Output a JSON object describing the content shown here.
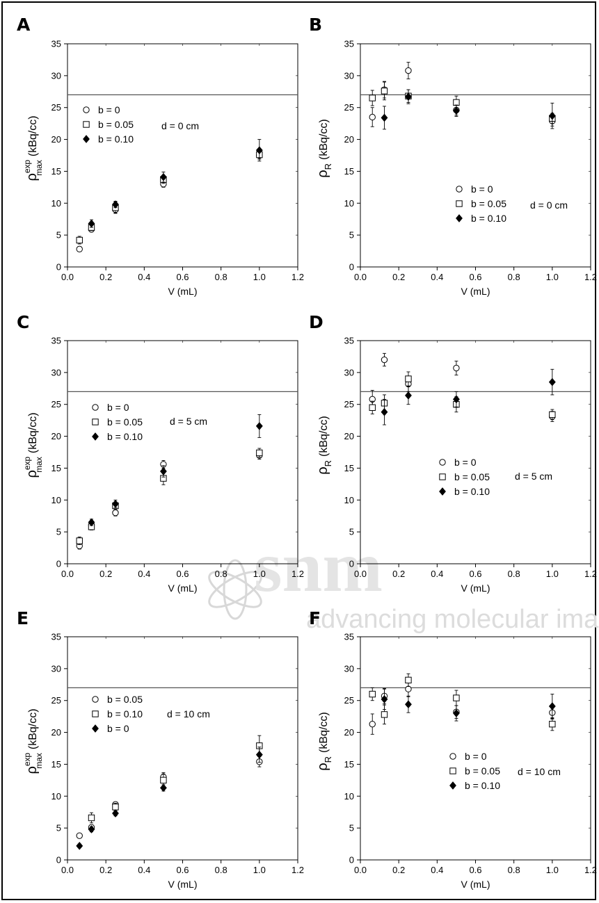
{
  "figure": {
    "watermark": {
      "main": "snm",
      "sub": "advancing molecular imag"
    }
  },
  "chart_data": [
    {
      "panel": "A",
      "type": "scatter",
      "xlabel": "V (mL)",
      "ylabel": "ρ",
      "ylabel_sup": "exp",
      "ylabel_sub": "max",
      "ylabel_unit": "(kBq/cc)",
      "xlim": [
        0,
        1.2
      ],
      "ylim": [
        0,
        35
      ],
      "xticks": [
        "0.0",
        "0.2",
        "0.4",
        "0.6",
        "0.8",
        "1.0",
        "1.2"
      ],
      "yticks": [
        "0",
        "5",
        "10",
        "15",
        "20",
        "25",
        "30",
        "35"
      ],
      "reference_line": 27.0,
      "annotation": "d = 0 cm",
      "series": [
        {
          "name": "b = 0",
          "marker": "circle",
          "points": [
            [
              0.0625,
              2.8,
              0.4
            ],
            [
              0.125,
              5.9,
              0.4
            ],
            [
              0.25,
              9.0,
              0.5
            ],
            [
              0.5,
              13.0,
              0.5
            ],
            [
              1.0,
              17.5,
              0.6
            ]
          ]
        },
        {
          "name": "b = 0.05",
          "marker": "square",
          "points": [
            [
              0.0625,
              4.2,
              0.6
            ],
            [
              0.125,
              6.2,
              0.5
            ],
            [
              0.25,
              9.3,
              0.9
            ],
            [
              0.5,
              13.7,
              0.6
            ],
            [
              1.0,
              17.6,
              0.5
            ]
          ]
        },
        {
          "name": "b = 0.10",
          "marker": "diamond",
          "points": [
            [
              0.125,
              6.8,
              0.6
            ],
            [
              0.25,
              9.8,
              0.5
            ],
            [
              0.5,
              14.1,
              0.8
            ],
            [
              1.0,
              18.3,
              1.7
            ]
          ]
        }
      ]
    },
    {
      "panel": "B",
      "type": "scatter",
      "xlabel": "V (mL)",
      "ylabel": "ρ",
      "ylabel_sub": "R",
      "ylabel_unit": "(kBq/cc)",
      "xlim": [
        0,
        1.2
      ],
      "ylim": [
        0,
        35
      ],
      "xticks": [
        "0.0",
        "0.2",
        "0.4",
        "0.6",
        "0.8",
        "1.0",
        "1.2"
      ],
      "yticks": [
        "0",
        "5",
        "10",
        "15",
        "20",
        "25",
        "30",
        "35"
      ],
      "reference_line": 27.0,
      "annotation": "d = 0 cm",
      "series": [
        {
          "name": "b = 0",
          "marker": "circle",
          "points": [
            [
              0.0625,
              23.5,
              1.5
            ],
            [
              0.125,
              27.8,
              1.3
            ],
            [
              0.25,
              30.8,
              1.3
            ],
            [
              0.5,
              24.6,
              0.8
            ],
            [
              1.0,
              22.9,
              0.8
            ]
          ]
        },
        {
          "name": "b = 0.05",
          "marker": "square",
          "points": [
            [
              0.0625,
              26.5,
              1.2
            ],
            [
              0.125,
              27.6,
              1.4
            ],
            [
              0.25,
              26.8,
              1.0
            ],
            [
              0.5,
              25.8,
              1.0
            ],
            [
              1.0,
              23.3,
              0.8
            ]
          ]
        },
        {
          "name": "b = 0.10",
          "marker": "diamond",
          "points": [
            [
              0.125,
              23.4,
              1.8
            ],
            [
              0.25,
              26.7,
              1.1
            ],
            [
              0.5,
              24.5,
              0.9
            ],
            [
              1.0,
              23.7,
              2.0
            ]
          ]
        }
      ]
    },
    {
      "panel": "C",
      "type": "scatter",
      "xlabel": "V (mL)",
      "ylabel": "ρ",
      "ylabel_sup": "exp",
      "ylabel_sub": "max",
      "ylabel_unit": "(kBq/cc)",
      "xlim": [
        0,
        1.2
      ],
      "ylim": [
        0,
        35
      ],
      "xticks": [
        "0.0",
        "0.2",
        "0.4",
        "0.6",
        "0.8",
        "1.0",
        "1.2"
      ],
      "yticks": [
        "0",
        "5",
        "10",
        "15",
        "20",
        "25",
        "30",
        "35"
      ],
      "reference_line": 27.0,
      "annotation": "d = 5 cm",
      "series": [
        {
          "name": "b = 0",
          "marker": "circle",
          "points": [
            [
              0.0625,
              2.8,
              0.5
            ],
            [
              0.125,
              6.0,
              0.4
            ],
            [
              0.25,
              8.0,
              0.5
            ],
            [
              0.5,
              15.6,
              0.6
            ],
            [
              1.0,
              17.0,
              0.6
            ]
          ]
        },
        {
          "name": "b = 0.05",
          "marker": "square",
          "points": [
            [
              0.0625,
              3.6,
              0.6
            ],
            [
              0.125,
              5.8,
              0.5
            ],
            [
              0.25,
              9.1,
              0.6
            ],
            [
              0.5,
              13.4,
              1.0
            ],
            [
              1.0,
              17.4,
              0.7
            ]
          ]
        },
        {
          "name": "b = 0.10",
          "marker": "diamond",
          "points": [
            [
              0.125,
              6.5,
              0.5
            ],
            [
              0.25,
              9.4,
              0.6
            ],
            [
              0.5,
              14.5,
              0.9
            ],
            [
              1.0,
              21.6,
              1.8
            ]
          ]
        }
      ]
    },
    {
      "panel": "D",
      "type": "scatter",
      "xlabel": "V (mL)",
      "ylabel": "ρ",
      "ylabel_sub": "R",
      "ylabel_unit": "(kBq/cc)",
      "xlim": [
        0,
        1.2
      ],
      "ylim": [
        0,
        35
      ],
      "xticks": [
        "0.0",
        "0.2",
        "0.4",
        "0.6",
        "0.8",
        "1.0",
        "1.2"
      ],
      "yticks": [
        "0",
        "5",
        "10",
        "15",
        "20",
        "25",
        "30",
        "35"
      ],
      "reference_line": 27.0,
      "annotation": "d = 5 cm",
      "series": [
        {
          "name": "b = 0",
          "marker": "circle",
          "points": [
            [
              0.0625,
              25.8,
              1.4
            ],
            [
              0.125,
              32.0,
              1.0
            ],
            [
              0.25,
              28.2,
              1.2
            ],
            [
              0.5,
              30.7,
              1.1
            ],
            [
              1.0,
              23.1,
              0.8
            ]
          ]
        },
        {
          "name": "b = 0.05",
          "marker": "square",
          "points": [
            [
              0.0625,
              24.5,
              1.0
            ],
            [
              0.125,
              25.2,
              1.3
            ],
            [
              0.25,
              29.0,
              1.1
            ],
            [
              0.5,
              25.0,
              1.2
            ],
            [
              1.0,
              23.4,
              0.8
            ]
          ]
        },
        {
          "name": "b = 0.10",
          "marker": "diamond",
          "points": [
            [
              0.125,
              23.8,
              2.0
            ],
            [
              0.25,
              26.4,
              1.4
            ],
            [
              0.5,
              25.8,
              1.2
            ],
            [
              1.0,
              28.5,
              2.0
            ]
          ]
        }
      ]
    },
    {
      "panel": "E",
      "type": "scatter",
      "xlabel": "V (mL)",
      "ylabel": "ρ",
      "ylabel_sup": "exp",
      "ylabel_sub": "max",
      "ylabel_unit": "(kBq/cc)",
      "xlim": [
        0,
        1.2
      ],
      "ylim": [
        0,
        35
      ],
      "xticks": [
        "0.0",
        "0.2",
        "0.4",
        "0.6",
        "0.8",
        "1.0",
        "1.2"
      ],
      "yticks": [
        "0",
        "5",
        "10",
        "15",
        "20",
        "25",
        "30",
        "35"
      ],
      "reference_line": 27.0,
      "annotation": "d = 10 cm",
      "series": [
        {
          "name": "b = 0.05",
          "marker": "circle",
          "points": [
            [
              0.0625,
              3.8,
              0.3
            ],
            [
              0.125,
              5.1,
              0.4
            ],
            [
              0.25,
              8.7,
              0.4
            ],
            [
              0.5,
              13.0,
              0.7
            ],
            [
              1.0,
              15.4,
              0.8
            ]
          ]
        },
        {
          "name": "b = 0.10",
          "marker": "square",
          "points": [
            [
              0.125,
              6.6,
              0.8
            ],
            [
              0.25,
              8.3,
              0.6
            ],
            [
              0.5,
              12.5,
              1.0
            ],
            [
              1.0,
              17.9,
              1.6
            ]
          ]
        },
        {
          "name": "b = 0",
          "marker": "diamond",
          "points": [
            [
              0.0625,
              2.2,
              0.3
            ],
            [
              0.125,
              4.8,
              0.4
            ],
            [
              0.25,
              7.3,
              0.4
            ],
            [
              0.5,
              11.3,
              0.5
            ],
            [
              1.0,
              16.5,
              1.2
            ]
          ]
        }
      ]
    },
    {
      "panel": "F",
      "type": "scatter",
      "xlabel": "V (mL)",
      "ylabel": "ρ",
      "ylabel_sub": "R",
      "ylabel_unit": "(kBq/cc)",
      "xlim": [
        0,
        1.2
      ],
      "ylim": [
        0,
        35
      ],
      "xticks": [
        "0.0",
        "0.2",
        "0.4",
        "0.6",
        "0.8",
        "1.0",
        "1.2"
      ],
      "yticks": [
        "0",
        "5",
        "10",
        "15",
        "20",
        "25",
        "30",
        "35"
      ],
      "reference_line": 27.0,
      "annotation": "d = 10 cm",
      "series": [
        {
          "name": "b = 0",
          "marker": "circle",
          "points": [
            [
              0.0625,
              21.3,
              1.6
            ],
            [
              0.125,
              25.7,
              1.2
            ],
            [
              0.25,
              26.8,
              1.2
            ],
            [
              0.5,
              23.2,
              1.0
            ],
            [
              1.0,
              23.1,
              1.0
            ]
          ]
        },
        {
          "name": "b = 0.05",
          "marker": "square",
          "points": [
            [
              0.0625,
              26.0,
              1.0
            ],
            [
              0.125,
              22.8,
              1.5
            ],
            [
              0.25,
              28.2,
              1.0
            ],
            [
              0.5,
              25.4,
              1.2
            ],
            [
              1.0,
              21.3,
              1.0
            ]
          ]
        },
        {
          "name": "b = 0.10",
          "marker": "diamond",
          "points": [
            [
              0.125,
              25.2,
              1.6
            ],
            [
              0.25,
              24.4,
              1.3
            ],
            [
              0.5,
              23.0,
              1.2
            ],
            [
              1.0,
              24.1,
              1.9
            ]
          ]
        }
      ]
    }
  ]
}
